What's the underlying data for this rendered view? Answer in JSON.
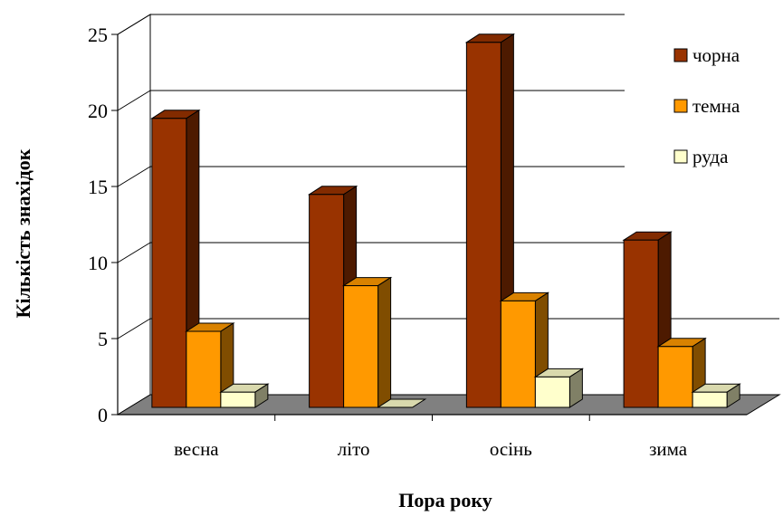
{
  "chart_data": {
    "type": "bar",
    "title": "",
    "xlabel": "Пора року",
    "ylabel": "Кількість знахідок",
    "categories": [
      "весна",
      "літо",
      "осінь",
      "зима"
    ],
    "ylim": [
      0,
      25
    ],
    "yticks": [
      0,
      5,
      10,
      15,
      20,
      25
    ],
    "grid": true,
    "legend_position": "top-right",
    "series": [
      {
        "name": "чорна",
        "values": [
          19,
          14,
          24,
          11
        ],
        "color": "#993300"
      },
      {
        "name": "темна",
        "values": [
          5,
          8,
          7,
          4
        ],
        "color": "#FF9900"
      },
      {
        "name": "руда",
        "values": [
          1,
          0,
          2,
          1
        ],
        "color": "#FFFFCC"
      }
    ]
  }
}
